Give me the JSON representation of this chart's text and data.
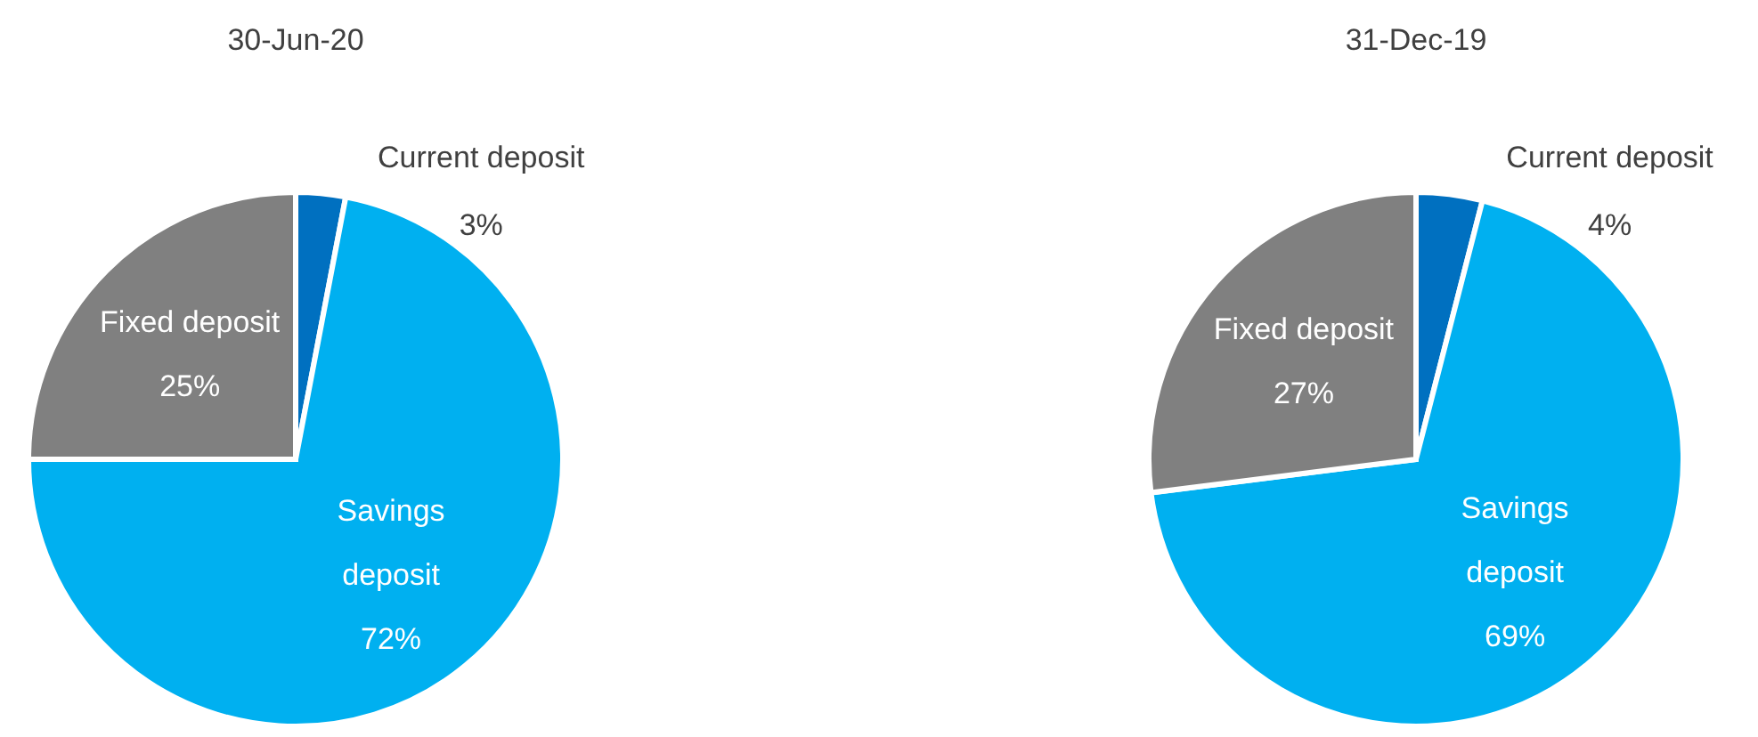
{
  "chart_data": [
    {
      "type": "pie",
      "title": "30-Jun-20",
      "categories": [
        "Current deposit",
        "Savings deposit",
        "Fixed deposit"
      ],
      "values": [
        3,
        72,
        25
      ],
      "value_labels": [
        "3%",
        "72%",
        "25%"
      ],
      "colors": [
        "#0070c0",
        "#00b0f0",
        "#808080"
      ]
    },
    {
      "type": "pie",
      "title": "31-Dec-19",
      "categories": [
        "Current deposit",
        "Savings deposit",
        "Fixed deposit"
      ],
      "values": [
        4,
        69,
        27
      ],
      "value_labels": [
        "4%",
        "69%",
        "27%"
      ],
      "colors": [
        "#0070c0",
        "#00b0f0",
        "#808080"
      ]
    }
  ]
}
